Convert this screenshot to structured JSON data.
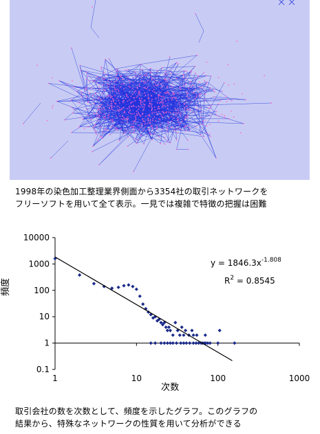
{
  "network": {
    "caption_line1": "1998年の染色加工整理業界側面から3354社の取引ネットワークを",
    "caption_line2": "フリーソフトを用いて全て表示。一見では複雑で特徴の把握は困難",
    "edge_color": "#2233dd",
    "node_color": "#ff66cc",
    "background_color": "#c8ccf4"
  },
  "chart_data": {
    "type": "scatter",
    "xlabel": "次数",
    "ylabel": "頻度",
    "x_scale": "log",
    "y_scale": "log",
    "xlim": [
      1,
      1000
    ],
    "ylim": [
      0.1,
      10000
    ],
    "x_ticks": [
      "1",
      "10",
      "100",
      "1000"
    ],
    "y_ticks": [
      "10000",
      "1000",
      "100",
      "10",
      "1",
      "0.1"
    ],
    "grid": false,
    "marker_color": "#1a2a8a",
    "trendline": {
      "coef": 1846.3,
      "exponent": -1.808,
      "equation_base": "y = 1846.3x",
      "equation_exp": "-1.808",
      "r2_base": "R",
      "r2_sup": "2",
      "r2_value": " = 0.8545"
    },
    "points": [
      [
        1,
        1600
      ],
      [
        2,
        380
      ],
      [
        3,
        180
      ],
      [
        4,
        140
      ],
      [
        5,
        120
      ],
      [
        6,
        130
      ],
      [
        7,
        150
      ],
      [
        8,
        160
      ],
      [
        9,
        140
      ],
      [
        10,
        110
      ],
      [
        11,
        60
      ],
      [
        12,
        30
      ],
      [
        13,
        20
      ],
      [
        14,
        15
      ],
      [
        15,
        12
      ],
      [
        16,
        9
      ],
      [
        17,
        10
      ],
      [
        18,
        7
      ],
      [
        19,
        8
      ],
      [
        20,
        6
      ],
      [
        21,
        5
      ],
      [
        22,
        6
      ],
      [
        23,
        4
      ],
      [
        24,
        3
      ],
      [
        25,
        4
      ],
      [
        26,
        3
      ],
      [
        28,
        2
      ],
      [
        30,
        6
      ],
      [
        32,
        3
      ],
      [
        34,
        2
      ],
      [
        36,
        4
      ],
      [
        38,
        2
      ],
      [
        40,
        3
      ],
      [
        44,
        2
      ],
      [
        48,
        3
      ],
      [
        50,
        2
      ],
      [
        55,
        2
      ],
      [
        70,
        2
      ],
      [
        105,
        3
      ],
      [
        15,
        1
      ],
      [
        17,
        1
      ],
      [
        20,
        1
      ],
      [
        22,
        1
      ],
      [
        24,
        1
      ],
      [
        26,
        1
      ],
      [
        28,
        1
      ],
      [
        31,
        1
      ],
      [
        35,
        1
      ],
      [
        38,
        1
      ],
      [
        41,
        1
      ],
      [
        45,
        1
      ],
      [
        50,
        1
      ],
      [
        54,
        1
      ],
      [
        58,
        1
      ],
      [
        62,
        1
      ],
      [
        65,
        1
      ],
      [
        68,
        1
      ],
      [
        71,
        1
      ],
      [
        75,
        1
      ],
      [
        80,
        1
      ],
      [
        100,
        1
      ],
      [
        160,
        1
      ]
    ]
  },
  "chart_caption": {
    "line1": "取引会社の数を次数として、頻度を示したグラフ。このグラフの",
    "line2": "結果から、特殊なネットワークの性質を用いて分析ができる"
  }
}
